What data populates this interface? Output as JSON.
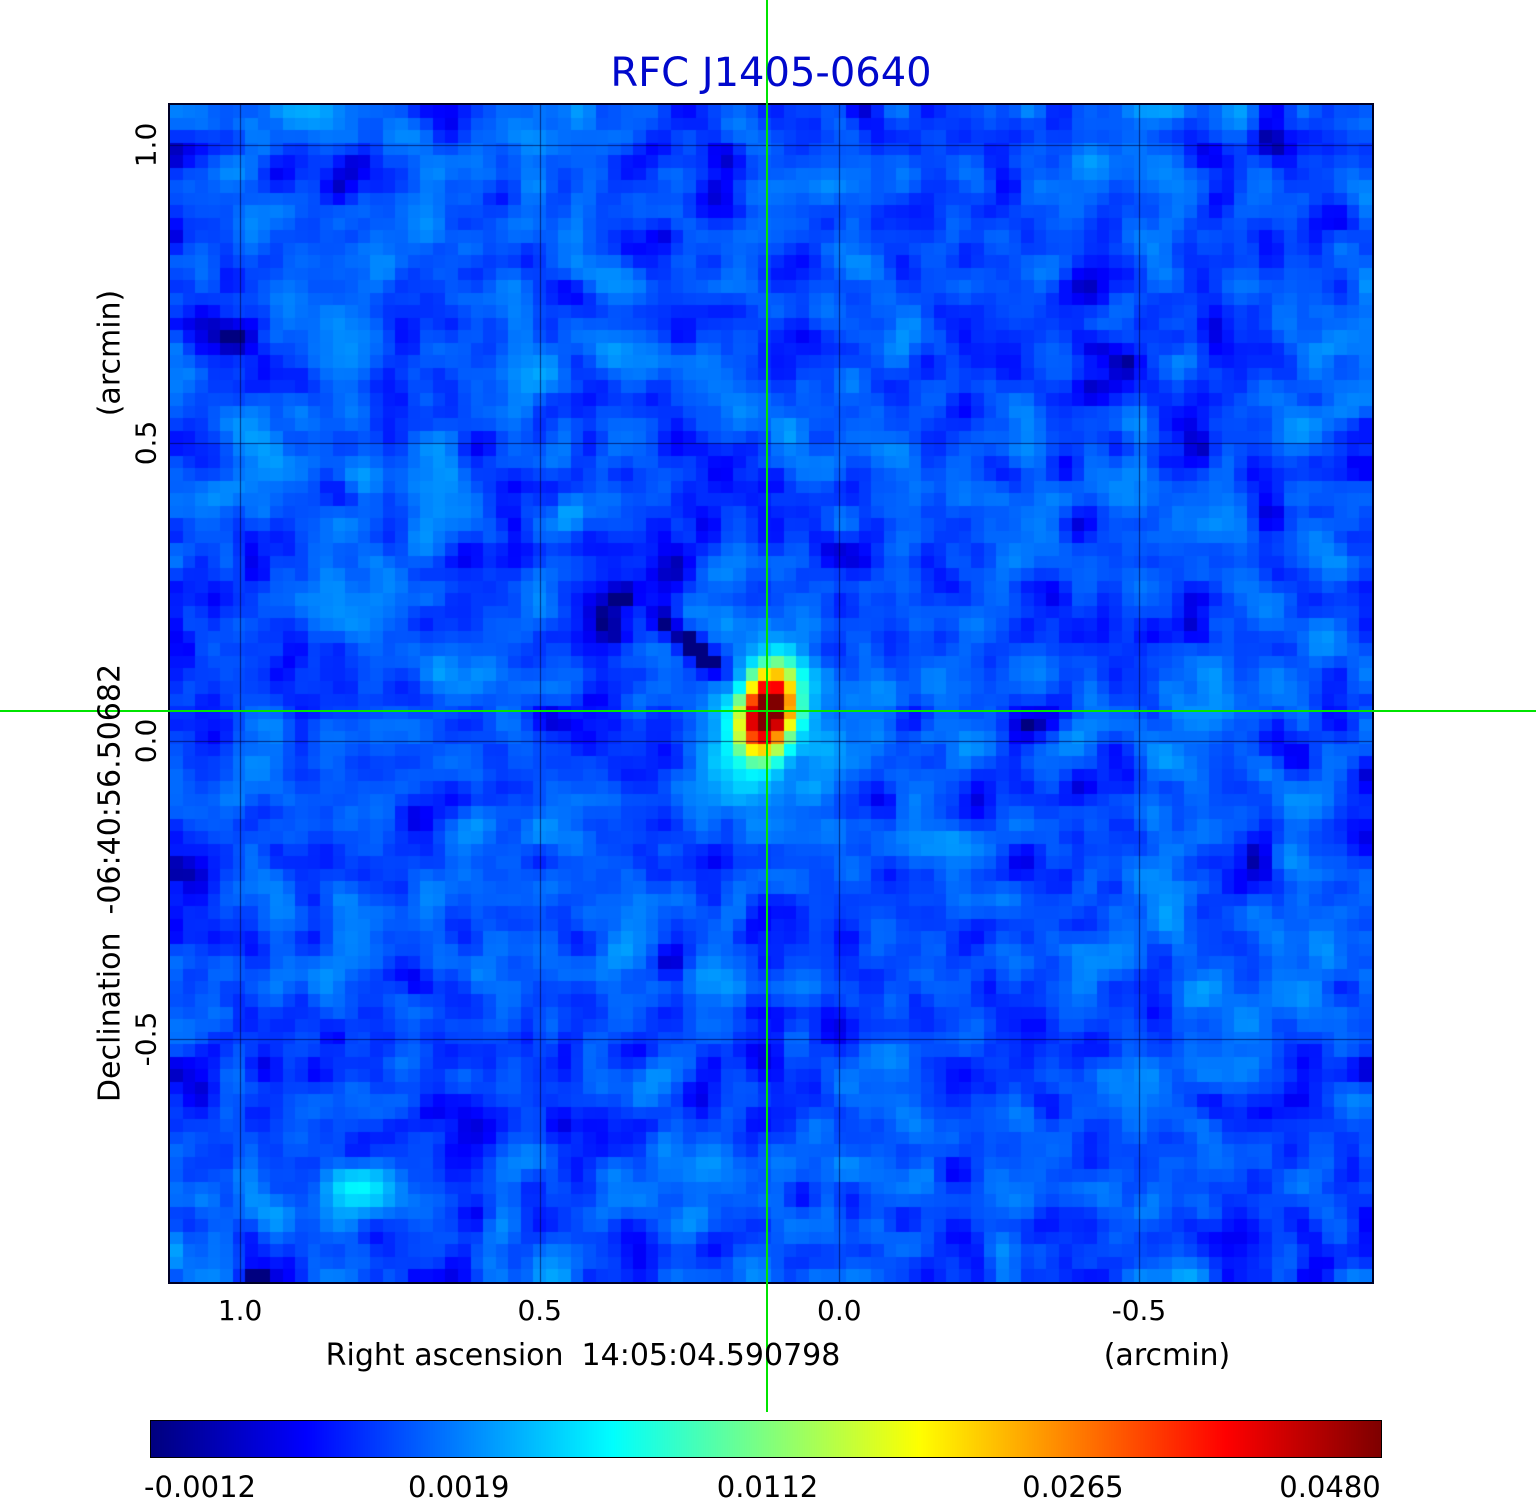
{
  "chart_data": {
    "type": "heatmap",
    "title": "RFC J1405-0640",
    "title_color": "#0008cc",
    "x_axis": {
      "name": "Right ascension",
      "value": "14:05:04.590798",
      "unit": "(arcmin)",
      "ticks": [
        1.0,
        0.5,
        0.0,
        -0.5
      ],
      "range": [
        1.117,
        -0.889
      ]
    },
    "y_axis": {
      "name": "Declination",
      "value": "-06:40:56.50682",
      "unit": "(arcmin)",
      "ticks": [
        1.0,
        0.5,
        0.0,
        -0.5
      ],
      "range": [
        1.067,
        -0.907
      ]
    },
    "colorbar": {
      "colormap": "jet",
      "scale": "sqrt",
      "vmin": -0.0012,
      "vmax": 0.048,
      "ticks": [
        -0.0012,
        0.0019,
        0.0112,
        0.0265,
        0.048
      ]
    },
    "crosshair": {
      "x": 0.12,
      "y": 0.05,
      "color": "#00e400"
    },
    "source": {
      "x": 0.12,
      "y": 0.05,
      "peak": 0.048,
      "sigma_maj": 0.043,
      "sigma_min": 0.025,
      "pa_deg": 105
    },
    "background": {
      "mean": 0.0008,
      "sigma": 0.0006
    },
    "features": [
      {
        "kind": "negative-sidelobe",
        "x": 0.233,
        "y": 0.147,
        "value": -0.0036
      },
      {
        "kind": "sidelobe-ripples",
        "angle_deg": 33
      },
      {
        "kind": "faint-blob",
        "x": 0.79,
        "y": -0.75,
        "value": 0.0037
      }
    ],
    "grid": true
  }
}
